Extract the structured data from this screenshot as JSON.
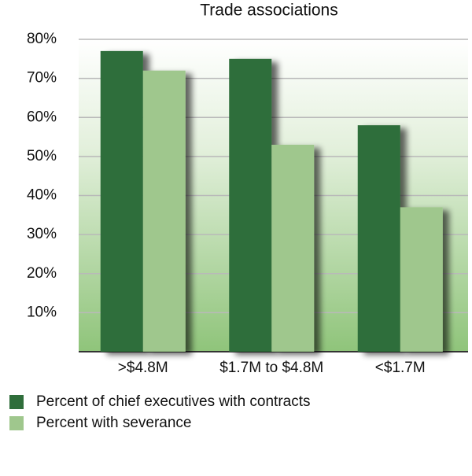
{
  "chart_data": {
    "type": "bar",
    "title": "Trade associations",
    "categories": [
      ">$4.8M",
      "$1.7M to $4.8M",
      "<$1.7M"
    ],
    "series": [
      {
        "name": "Percent of chief executives with contracts",
        "color": "#2f6e3b",
        "values": [
          77,
          75,
          58
        ]
      },
      {
        "name": "Percent with severance",
        "color": "#9fc78d",
        "values": [
          72,
          53,
          37
        ]
      }
    ],
    "ylim": [
      0,
      80
    ],
    "yticks": [
      {
        "value": 10,
        "label": "10%"
      },
      {
        "value": 20,
        "label": "20%"
      },
      {
        "value": 30,
        "label": "30%"
      },
      {
        "value": 40,
        "label": "40%"
      },
      {
        "value": 50,
        "label": "50%"
      },
      {
        "value": 60,
        "label": "60%"
      },
      {
        "value": 70,
        "label": "70%"
      },
      {
        "value": 80,
        "label": "80%"
      }
    ],
    "grid": true
  }
}
